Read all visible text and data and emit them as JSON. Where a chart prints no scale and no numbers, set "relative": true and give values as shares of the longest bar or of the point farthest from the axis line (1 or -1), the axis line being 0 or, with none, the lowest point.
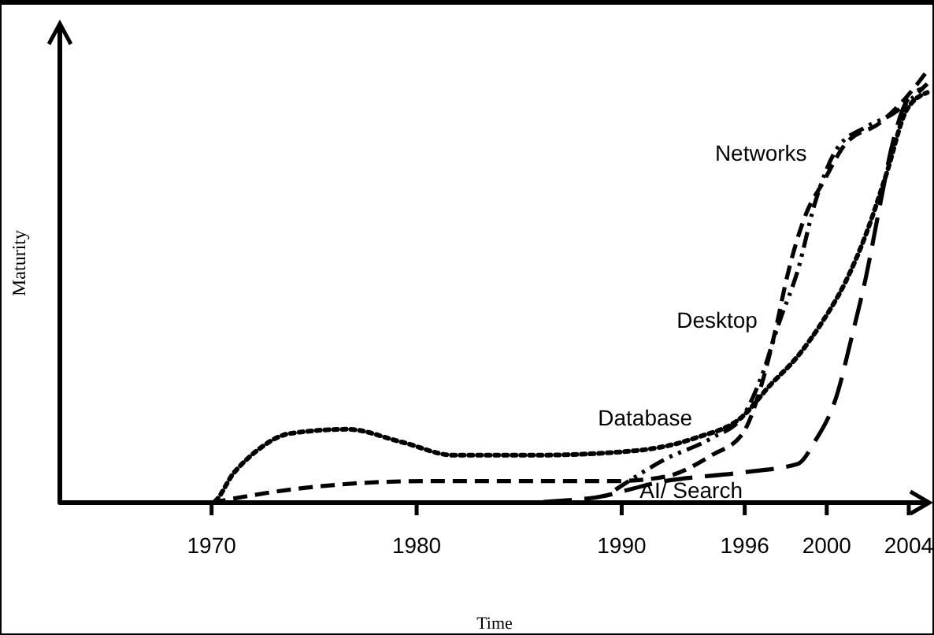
{
  "chart_data": {
    "type": "line",
    "relative": true,
    "xlabel": "Time",
    "ylabel": "Maturity",
    "xlim": [
      1962.6,
      2005
    ],
    "xticks": [
      1970,
      1980,
      1990,
      1996,
      2000,
      2004
    ],
    "grid": false,
    "legend": false,
    "marker": "none",
    "series": [
      {
        "name": "Networks",
        "color": "#000000",
        "line_style": "dashed",
        "x": [
          1970,
          1973.8,
          1980.5,
          1989.7,
          1992.1,
          1994.4,
          1995.9,
          1996.8,
          1997.5,
          1998.1,
          1999.0,
          1999.8,
          2000.9,
          2002.6,
          2003.9,
          2004.9
        ],
        "values": [
          0,
          0.03,
          0.05,
          0.05,
          0.06,
          0.11,
          0.16,
          0.27,
          0.4,
          0.53,
          0.67,
          0.74,
          0.83,
          0.88,
          0.94,
          1
        ]
      },
      {
        "name": "Desktop",
        "color": "#000000",
        "line_style": "dashed",
        "x": [
          1989.7,
          1992.1,
          1994.4,
          1995.9,
          1996.8,
          1997.7,
          1998.6,
          1999.4,
          2000.5,
          2001.9,
          2003.2,
          2004.9
        ],
        "values": [
          0.03,
          0.1,
          0.15,
          0.2,
          0.29,
          0.42,
          0.54,
          0.69,
          0.82,
          0.87,
          0.9,
          0.97
        ]
      },
      {
        "name": "Database",
        "color": "#000000",
        "line_style": "dotted",
        "x": [
          1962.6,
          1970,
          1971.1,
          1972.2,
          1973.8,
          1976.6,
          1979.3,
          1981.8,
          1985.8,
          1990.6,
          1993.6,
          1995.9,
          1997.2,
          1998.6,
          1999.8,
          2000.9,
          2001.9,
          2002.9,
          2003.9,
          2004.9
        ],
        "values": [
          0,
          0,
          0.07,
          0.12,
          0.16,
          0.17,
          0.14,
          0.11,
          0.11,
          0.12,
          0.15,
          0.2,
          0.27,
          0.34,
          0.42,
          0.51,
          0.62,
          0.76,
          0.91,
          0.95
        ]
      },
      {
        "name": "AI/ Search",
        "color": "#000000",
        "line_style": "dashed",
        "x": [
          1978.2,
          1984.5,
          1988.4,
          1992.1,
          1995.9,
          1998.6,
          1999.4,
          2000.5,
          2001.2,
          2001.9,
          2002.6,
          2003.2,
          2003.9,
          2004.7
        ],
        "values": [
          0,
          0,
          0.01,
          0.05,
          0.07,
          0.09,
          0.14,
          0.25,
          0.38,
          0.52,
          0.69,
          0.83,
          0.93,
          0.96
        ]
      }
    ]
  }
}
